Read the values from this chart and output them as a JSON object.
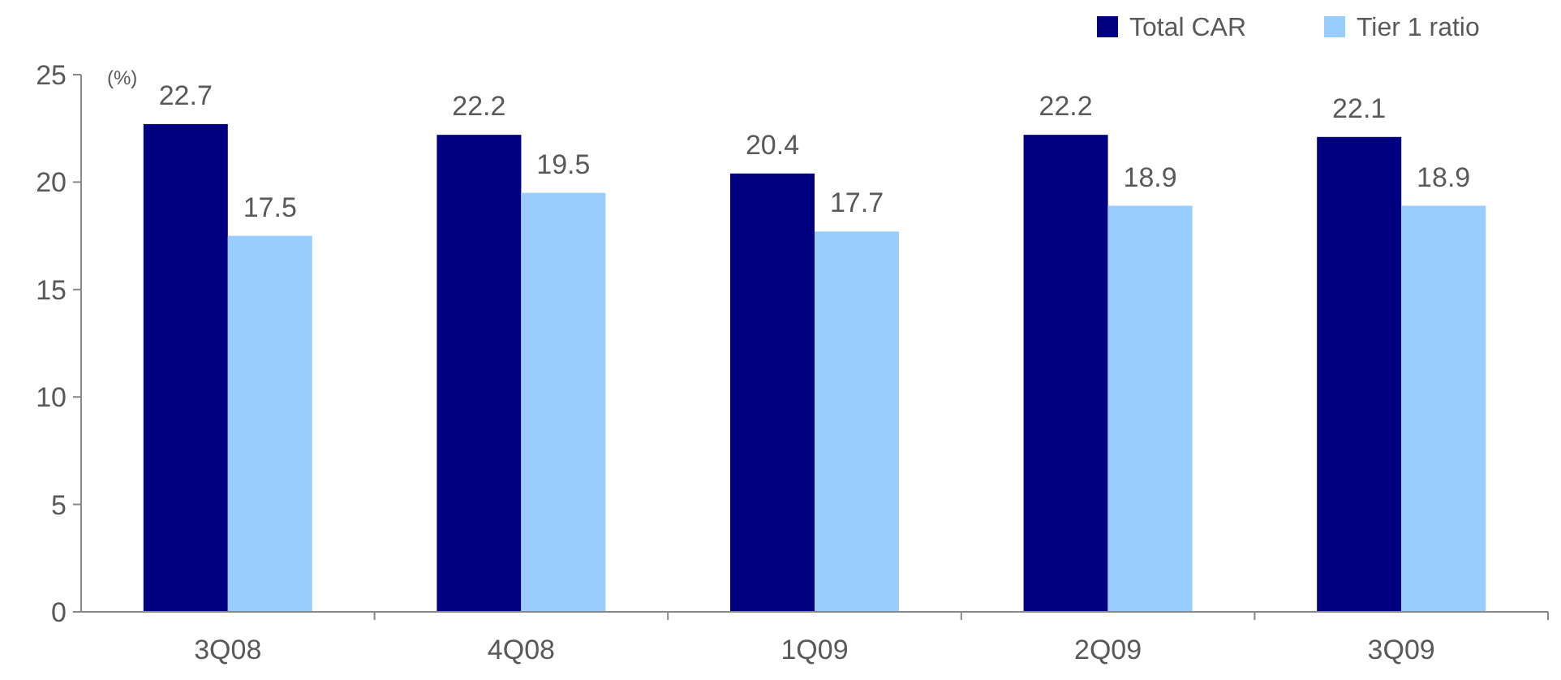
{
  "chart_data": {
    "type": "bar",
    "ylabel": "(%)",
    "categories": [
      "3Q08",
      "4Q08",
      "1Q09",
      "2Q09",
      "3Q09"
    ],
    "series": [
      {
        "name": "Total CAR",
        "color": "#000080",
        "values": [
          22.7,
          22.2,
          20.4,
          22.2,
          22.1
        ]
      },
      {
        "name": "Tier 1 ratio",
        "color": "#99ccff",
        "values": [
          17.5,
          19.5,
          17.7,
          18.9,
          18.9
        ]
      }
    ],
    "ylim": [
      0,
      25
    ],
    "yticks": [
      0,
      5,
      10,
      15,
      20,
      25
    ],
    "data_labels": true,
    "legend": "top right",
    "grid": false
  }
}
